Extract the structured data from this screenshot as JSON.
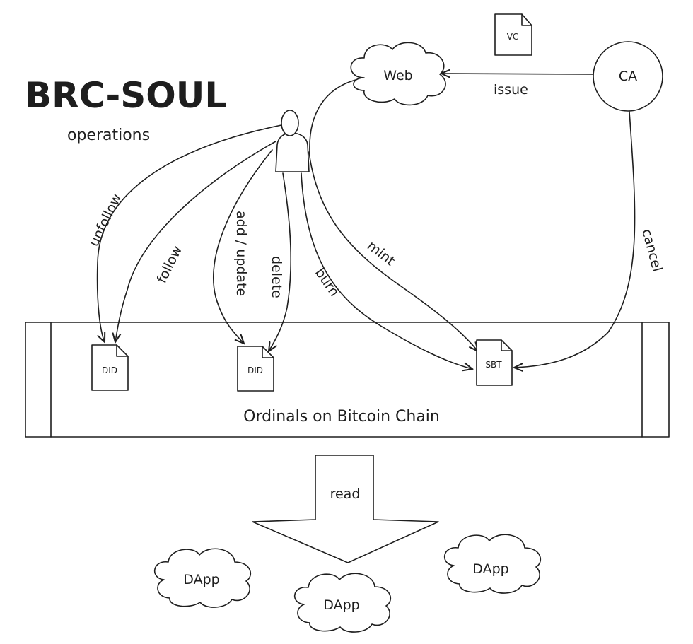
{
  "header": {
    "title": "BRC-SOUL",
    "subtitle": "operations"
  },
  "nodes": {
    "web": "Web",
    "ca": "CA",
    "vc": "VC",
    "chain": "Ordinals on Bitcoin Chain",
    "did_left": "DID",
    "did_mid": "DID",
    "sbt": "SBT",
    "read": "read",
    "dapp_left": "DApp",
    "dapp_mid": "DApp",
    "dapp_right": "DApp"
  },
  "edges": {
    "issue": "issue",
    "unfollow": "unfollow",
    "follow": "follow",
    "add_update": "add / update",
    "delete": "delete",
    "burn": "burn",
    "mint": "mint",
    "cancel": "cancel"
  }
}
